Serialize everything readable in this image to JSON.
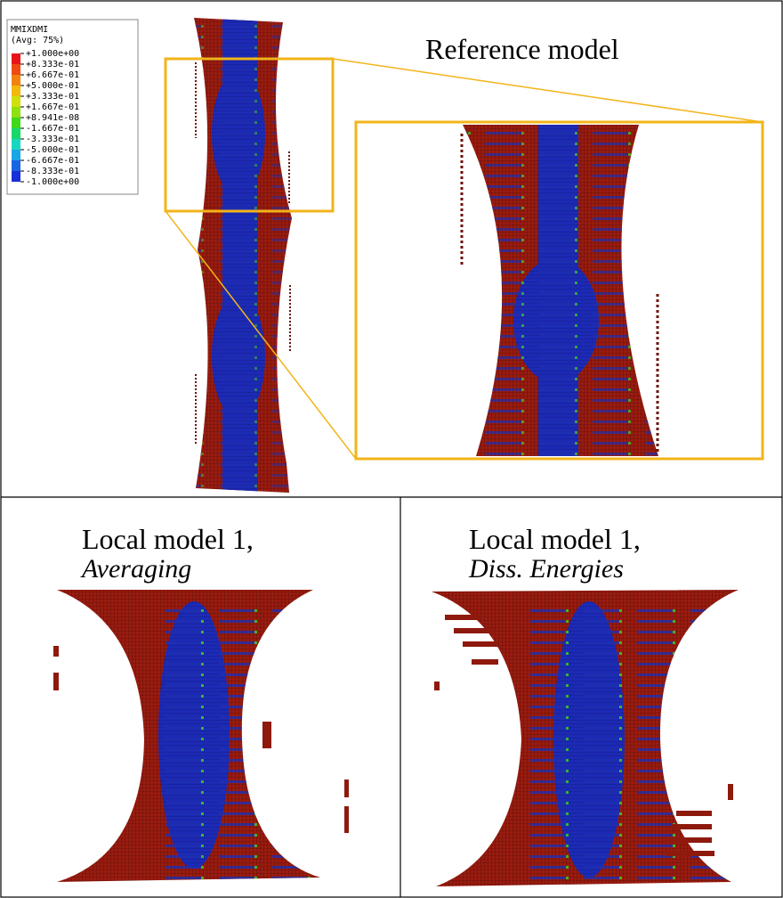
{
  "legend": {
    "title": "MMIXDMI",
    "subtitle": "(Avg: 75%)",
    "labels": [
      "+1.000e+00",
      "+8.333e-01",
      "+6.667e-01",
      "+5.000e-01",
      "+3.333e-01",
      "+1.667e-01",
      "+8.941e-08",
      "-1.667e-01",
      "-3.333e-01",
      "-5.000e-01",
      "-6.667e-01",
      "-8.333e-01",
      "-1.000e+00"
    ],
    "colors": [
      "#e8141a",
      "#ee4a12",
      "#f2820e",
      "#f0b90c",
      "#cfe00e",
      "#8ee010",
      "#3fd81a",
      "#18d86a",
      "#16d8c0",
      "#1aa6e6",
      "#1a66e0",
      "#1830d8"
    ]
  },
  "reference": {
    "title": "Reference model"
  },
  "local_averaging": {
    "title": "Local model 1,",
    "subtitle": "Averaging"
  },
  "local_diss": {
    "title": "Local model 1,",
    "subtitle": "Diss. Energies"
  }
}
